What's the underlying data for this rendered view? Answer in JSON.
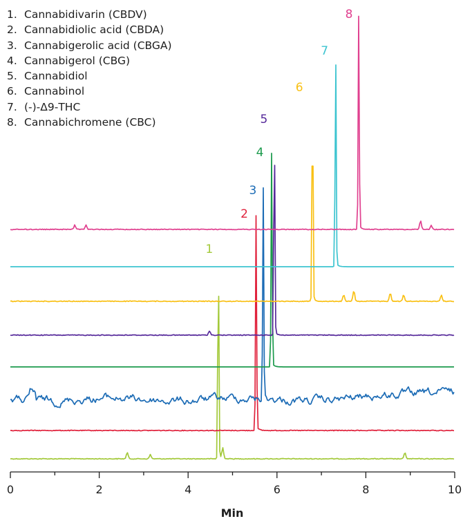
{
  "chart_data": {
    "type": "line",
    "chart_subtype": "stacked chromatogram traces",
    "xlabel": "Min",
    "ylabel": "",
    "xlim": [
      0,
      10
    ],
    "x_ticks": [
      0,
      2,
      4,
      6,
      8,
      10
    ],
    "x_tick_labels": [
      "0",
      "2",
      "4",
      "6",
      "8",
      "10"
    ],
    "grid": false,
    "legend": {
      "placement": "top-left",
      "entries": [
        {
          "num": "1.",
          "name": "Cannabidivarin (CBDV)"
        },
        {
          "num": "2.",
          "name": "Cannabidiolic acid (CBDA)"
        },
        {
          "num": "3.",
          "name": "Cannabigerolic acid (CBGA)"
        },
        {
          "num": "4.",
          "name": "Cannabigerol (CBG)"
        },
        {
          "num": "5.",
          "name": "Cannabidiol"
        },
        {
          "num": "6.",
          "name": "Cannabinol"
        },
        {
          "num": "7.",
          "name": "(-)-Δ9-THC"
        },
        {
          "num": "8.",
          "name": "Cannabichromene  (CBC)"
        }
      ]
    },
    "series": [
      {
        "label": "1",
        "color": "#a3c93a",
        "retention_time": 4.68,
        "relative_peak_height": 1.0,
        "baseline_noise": "low",
        "minor_peaks": [
          [
            2.63,
            0.03
          ],
          [
            3.15,
            0.02
          ],
          [
            4.78,
            0.05
          ],
          [
            8.88,
            0.03
          ]
        ]
      },
      {
        "label": "2",
        "color": "#e0223c",
        "retention_time": 5.53,
        "relative_peak_height": 1.0,
        "baseline_noise": "low",
        "minor_peaks": []
      },
      {
        "label": "3",
        "color": "#1b6bb5",
        "retention_time": 5.69,
        "relative_peak_height": 1.0,
        "baseline_noise": "high",
        "minor_peaks": []
      },
      {
        "label": "4",
        "color": "#1b9a4c",
        "retention_time": 5.88,
        "relative_peak_height": 1.0,
        "baseline_noise": "none",
        "minor_peaks": []
      },
      {
        "label": "5",
        "color": "#55289a",
        "retention_time": 5.94,
        "relative_peak_height": 1.0,
        "baseline_noise": "low",
        "minor_peaks": [
          [
            4.48,
            0.02
          ]
        ]
      },
      {
        "label": "6",
        "color": "#f9c014",
        "retention_time": 6.8,
        "relative_peak_height": 1.0,
        "baseline_noise": "low",
        "minor_peaks": [
          [
            7.5,
            0.03
          ],
          [
            7.73,
            0.05
          ],
          [
            8.55,
            0.04
          ],
          [
            8.85,
            0.03
          ],
          [
            9.7,
            0.03
          ]
        ]
      },
      {
        "label": "7",
        "color": "#3cc4d0",
        "retention_time": 7.32,
        "relative_peak_height": 1.0,
        "baseline_noise": "none",
        "minor_peaks": []
      },
      {
        "label": "8",
        "color": "#e0408f",
        "retention_time": 7.84,
        "relative_peak_height": 1.0,
        "baseline_noise": "low",
        "minor_peaks": [
          [
            1.45,
            0.02
          ],
          [
            1.7,
            0.02
          ],
          [
            9.23,
            0.04
          ],
          [
            9.47,
            0.02
          ]
        ]
      }
    ]
  }
}
